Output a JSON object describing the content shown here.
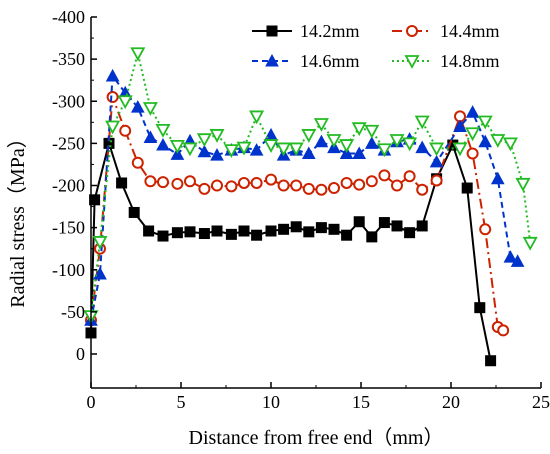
{
  "chart_data": {
    "type": "line",
    "xlabel": "Distance from free end（mm）",
    "ylabel": "Radial stress（MPa）",
    "xlim": [
      0,
      25
    ],
    "ylim": [
      -400,
      0
    ],
    "y_reversed": true,
    "x_ticks": [
      0,
      5,
      10,
      15,
      20,
      25
    ],
    "y_ticks": [
      -400,
      -350,
      -300,
      -250,
      -200,
      -150,
      -100,
      -50,
      0
    ],
    "grid": false,
    "legend_position": "top-right",
    "series": [
      {
        "name": "14.2mm",
        "color": "#000000",
        "marker": "square-filled",
        "dash": "solid",
        "points": [
          [
            0,
            -25
          ],
          [
            0.2,
            -183
          ],
          [
            1.0,
            -250
          ],
          [
            1.7,
            -203
          ],
          [
            2.4,
            -168
          ],
          [
            3.2,
            -146
          ],
          [
            4.0,
            -140
          ],
          [
            4.8,
            -144
          ],
          [
            5.5,
            -145
          ],
          [
            6.3,
            -143
          ],
          [
            7.0,
            -146
          ],
          [
            7.8,
            -142
          ],
          [
            8.5,
            -146
          ],
          [
            9.2,
            -141
          ],
          [
            10.0,
            -146
          ],
          [
            10.7,
            -148
          ],
          [
            11.4,
            -151
          ],
          [
            12.1,
            -145
          ],
          [
            12.8,
            -150
          ],
          [
            13.5,
            -148
          ],
          [
            14.2,
            -141
          ],
          [
            14.9,
            -157
          ],
          [
            15.6,
            -139
          ],
          [
            16.3,
            -156
          ],
          [
            17.0,
            -152
          ],
          [
            17.7,
            -144
          ],
          [
            18.4,
            -152
          ],
          [
            19.2,
            -208
          ],
          [
            20.1,
            -248
          ],
          [
            20.9,
            -197
          ],
          [
            21.6,
            -55
          ],
          [
            22.2,
            8
          ]
        ]
      },
      {
        "name": "14.4mm",
        "color": "#cc2200",
        "marker": "circle-open",
        "dash": "dashdot",
        "points": [
          [
            0,
            -40
          ],
          [
            0.5,
            -125
          ],
          [
            1.2,
            -305
          ],
          [
            1.9,
            -265
          ],
          [
            2.6,
            -227
          ],
          [
            3.3,
            -205
          ],
          [
            4.0,
            -204
          ],
          [
            4.8,
            -202
          ],
          [
            5.5,
            -205
          ],
          [
            6.3,
            -196
          ],
          [
            7.0,
            -200
          ],
          [
            7.8,
            -199
          ],
          [
            8.5,
            -203
          ],
          [
            9.2,
            -203
          ],
          [
            10.0,
            -207
          ],
          [
            10.7,
            -200
          ],
          [
            11.4,
            -200
          ],
          [
            12.1,
            -196
          ],
          [
            12.8,
            -195
          ],
          [
            13.5,
            -197
          ],
          [
            14.2,
            -203
          ],
          [
            14.9,
            -201
          ],
          [
            15.6,
            -205
          ],
          [
            16.3,
            -212
          ],
          [
            17.0,
            -200
          ],
          [
            17.7,
            -211
          ],
          [
            18.4,
            -195
          ],
          [
            19.2,
            -206
          ],
          [
            20.5,
            -282
          ],
          [
            21.2,
            -238
          ],
          [
            21.9,
            -148
          ],
          [
            22.6,
            -32
          ],
          [
            22.9,
            -28
          ]
        ]
      },
      {
        "name": "14.6mm",
        "color": "#0033cc",
        "marker": "triangle-up-filled",
        "dash": "dash",
        "points": [
          [
            0,
            -40
          ],
          [
            0.5,
            -95
          ],
          [
            1.2,
            -330
          ],
          [
            1.9,
            -310
          ],
          [
            2.6,
            -293
          ],
          [
            3.3,
            -257
          ],
          [
            4.0,
            -248
          ],
          [
            4.8,
            -237
          ],
          [
            5.5,
            -253
          ],
          [
            6.3,
            -240
          ],
          [
            7.0,
            -236
          ],
          [
            7.8,
            -242
          ],
          [
            8.5,
            -245
          ],
          [
            9.2,
            -242
          ],
          [
            10.0,
            -260
          ],
          [
            10.7,
            -236
          ],
          [
            11.4,
            -242
          ],
          [
            12.1,
            -238
          ],
          [
            12.8,
            -252
          ],
          [
            13.5,
            -245
          ],
          [
            14.2,
            -238
          ],
          [
            14.9,
            -238
          ],
          [
            15.6,
            -250
          ],
          [
            16.3,
            -242
          ],
          [
            17.0,
            -252
          ],
          [
            17.7,
            -255
          ],
          [
            18.4,
            -245
          ],
          [
            19.2,
            -228
          ],
          [
            20.5,
            -270
          ],
          [
            21.2,
            -287
          ],
          [
            21.9,
            -252
          ],
          [
            22.6,
            -208
          ],
          [
            23.3,
            -115
          ],
          [
            23.7,
            -110
          ]
        ]
      },
      {
        "name": "14.8mm",
        "color": "#22bb22",
        "marker": "triangle-down-open",
        "dash": "dot",
        "points": [
          [
            0,
            -45
          ],
          [
            0.5,
            -133
          ],
          [
            1.2,
            -270
          ],
          [
            1.9,
            -300
          ],
          [
            2.6,
            -357
          ],
          [
            3.3,
            -292
          ],
          [
            4.0,
            -266
          ],
          [
            4.8,
            -247
          ],
          [
            5.5,
            -244
          ],
          [
            6.3,
            -255
          ],
          [
            7.0,
            -260
          ],
          [
            7.8,
            -242
          ],
          [
            8.5,
            -245
          ],
          [
            9.2,
            -282
          ],
          [
            10.0,
            -248
          ],
          [
            10.7,
            -244
          ],
          [
            11.4,
            -244
          ],
          [
            12.1,
            -260
          ],
          [
            12.8,
            -273
          ],
          [
            13.5,
            -254
          ],
          [
            14.2,
            -248
          ],
          [
            14.9,
            -268
          ],
          [
            15.6,
            -265
          ],
          [
            16.3,
            -243
          ],
          [
            17.0,
            -254
          ],
          [
            17.7,
            -250
          ],
          [
            18.4,
            -276
          ],
          [
            19.2,
            -244
          ],
          [
            20.5,
            -244
          ],
          [
            21.2,
            -262
          ],
          [
            21.9,
            -276
          ],
          [
            22.6,
            -254
          ],
          [
            23.3,
            -250
          ],
          [
            24.0,
            -202
          ],
          [
            24.4,
            -132
          ]
        ]
      }
    ]
  }
}
